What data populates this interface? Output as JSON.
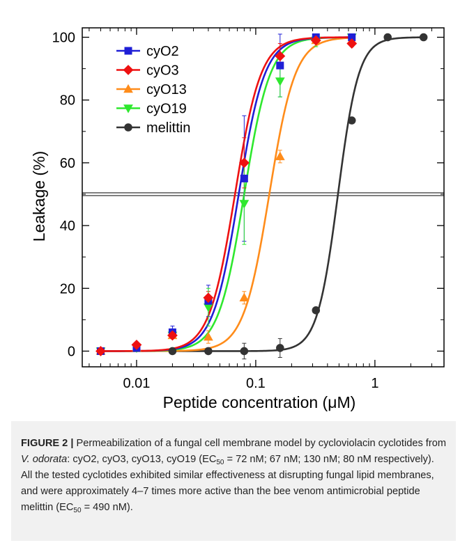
{
  "chart_data": {
    "type": "scatter",
    "xlabel_text": "Peptide concentration (",
    "xlabel_unit": "μM",
    "xlabel_close": ")",
    "ylabel": "Leakage (%)",
    "xscale": "log",
    "xlim": [
      0.0035,
      3.8
    ],
    "ylim": [
      -5,
      103
    ],
    "xticks": [
      {
        "value": 0.01,
        "label": "0.01"
      },
      {
        "value": 0.1,
        "label": "0.1"
      },
      {
        "value": 1,
        "label": "1"
      }
    ],
    "yticks": [
      0,
      20,
      40,
      60,
      80,
      100
    ],
    "reference_line_y": 50,
    "legend_position": "top-left",
    "series": [
      {
        "name": "cyO2",
        "color": "#1f1fd6",
        "marker": "square",
        "ec50": 0.072,
        "hill": 4.0,
        "x": [
          0.005,
          0.01,
          0.02,
          0.04,
          0.08,
          0.16,
          0.32,
          0.64
        ],
        "y": [
          0,
          1,
          6,
          16,
          55,
          91,
          100,
          100
        ],
        "err": [
          0,
          0,
          2,
          5,
          20,
          10,
          1,
          0
        ]
      },
      {
        "name": "cyO3",
        "color": "#ee1111",
        "marker": "diamond",
        "ec50": 0.067,
        "hill": 4.0,
        "x": [
          0.005,
          0.01,
          0.02,
          0.04,
          0.08,
          0.16,
          0.32,
          0.64
        ],
        "y": [
          0,
          2,
          5,
          17,
          60,
          94,
          99,
          98
        ],
        "err": [
          0,
          0,
          1,
          2,
          8,
          4,
          1,
          1
        ]
      },
      {
        "name": "cyO13",
        "color": "#ff8c1a",
        "marker": "triangle-up",
        "ec50": 0.13,
        "hill": 4.0,
        "x": [
          0.005,
          0.01,
          0.02,
          0.04,
          0.08,
          0.16,
          0.32,
          0.64
        ],
        "y": [
          0,
          1,
          5,
          4.5,
          17,
          62,
          99,
          99
        ],
        "err": [
          0,
          0,
          1,
          2,
          2,
          2,
          1,
          1
        ]
      },
      {
        "name": "cyO19",
        "color": "#2ee82e",
        "marker": "triangle-down",
        "ec50": 0.08,
        "hill": 4.0,
        "x": [
          0.005,
          0.01,
          0.02,
          0.04,
          0.08,
          0.16,
          0.32,
          0.64
        ],
        "y": [
          0,
          1,
          5,
          14,
          47,
          86,
          99,
          100
        ],
        "err": [
          0,
          0,
          1,
          6,
          13,
          5,
          2,
          1
        ]
      },
      {
        "name": "melittin",
        "color": "#333333",
        "marker": "circle",
        "ec50": 0.49,
        "hill": 5.0,
        "x": [
          0.02,
          0.04,
          0.08,
          0.16,
          0.32,
          0.64,
          1.28,
          2.56
        ],
        "y": [
          0,
          0,
          0,
          1,
          13,
          73.5,
          100,
          100
        ],
        "err": [
          0,
          0,
          2.5,
          3,
          0,
          0,
          0,
          0
        ]
      }
    ]
  },
  "caption": {
    "label": "FIGURE 2 |",
    "t1": " Permeabilization of a fungal cell membrane model by cycloviolacin cyclotides from ",
    "species": "V. odorata",
    "t2": ": cyO2, cyO3, cyO13, cyO19 (EC",
    "sub1": "50",
    "t3": " = 72 nM; 67 nM; 130 nM; 80 nM respectively). All the tested cyclotides exhibited similar effectiveness at disrupting fungal lipid membranes, and were approximately 4–7 times more active than the bee venom antimicrobial peptide melittin (EC",
    "sub2": "50",
    "t4": " = 490 nM)."
  }
}
